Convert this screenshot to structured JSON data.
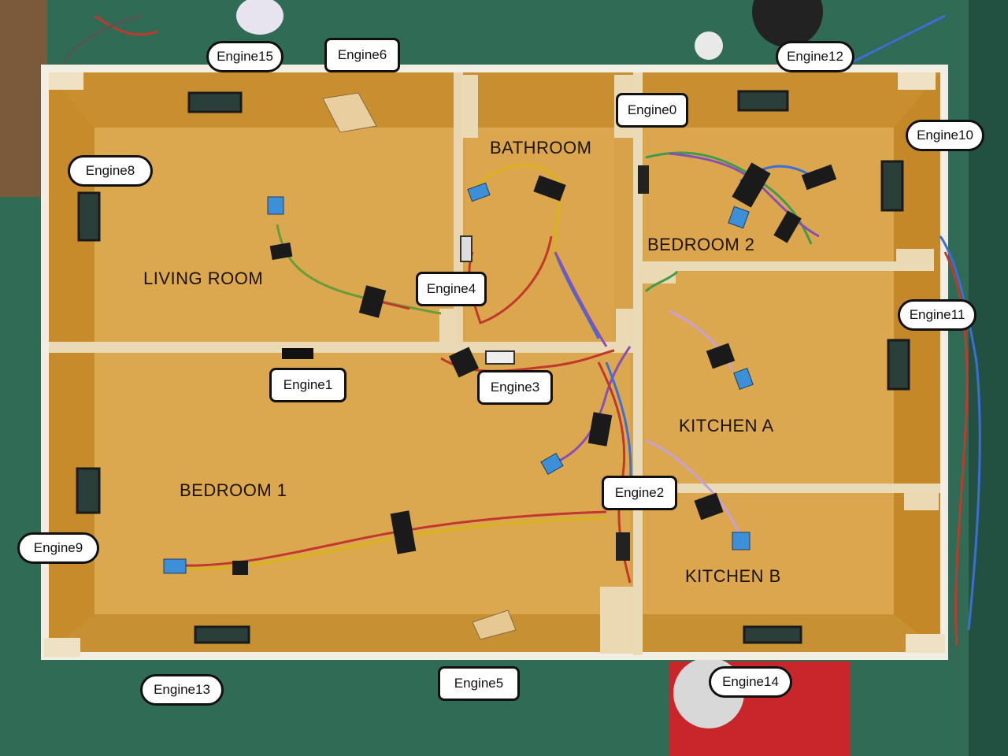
{
  "rooms": {
    "living_room": "LIVING ROOM",
    "bathroom": "BATHROOM",
    "bedroom_2": "BEDROOM 2",
    "kitchen_a": "KITCHEN A",
    "bedroom_1": "BEDROOM 1",
    "kitchen_b": "KITCHEN B"
  },
  "engines": {
    "e0": "Engine0",
    "e1": "Engine1",
    "e2": "Engine2",
    "e3": "Engine3",
    "e4": "Engine4",
    "e5": "Engine5",
    "e6": "Engine6",
    "e8": "Engine8",
    "e9": "Engine9",
    "e10": "Engine10",
    "e11": "Engine11",
    "e12": "Engine12",
    "e13": "Engine13",
    "e14": "Engine14",
    "e15": "Engine15"
  },
  "colors": {
    "table": "#2f6b55",
    "floor": "#d29a3c",
    "wall_top": "#f3efe6",
    "wall_inner": "#c98d2e",
    "wire_red": "#c0392b",
    "wire_yellow": "#d8b41a",
    "wire_blue": "#3b6fd4",
    "wire_green": "#3f9c4a",
    "wire_purple": "#8a4fb5",
    "sensor_blue": "#3d8fd8"
  }
}
